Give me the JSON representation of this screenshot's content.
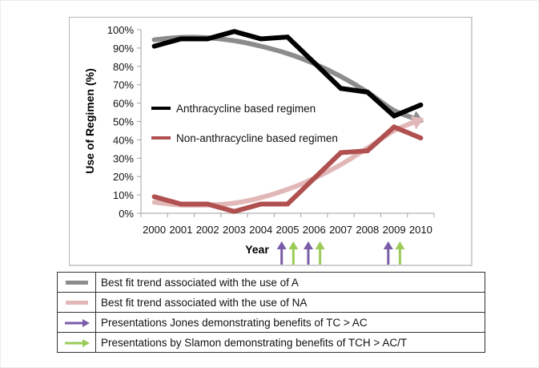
{
  "chart_data": {
    "type": "line",
    "title": "",
    "xlabel": "Year",
    "ylabel": "Use of Regimen (%)",
    "ylim": [
      0,
      100
    ],
    "y_ticks": [
      "0%",
      "10%",
      "20%",
      "30%",
      "40%",
      "50%",
      "60%",
      "70%",
      "80%",
      "90%",
      "100%"
    ],
    "categories": [
      "2000",
      "2001",
      "2002",
      "2003",
      "2004",
      "2005",
      "2006",
      "2007",
      "2008",
      "2009",
      "2010"
    ],
    "series": [
      {
        "name": "Anthracycline based regimen",
        "color": "#000000",
        "values": [
          91,
          95,
          95,
          99,
          95,
          96,
          82,
          68,
          66,
          53,
          59
        ]
      },
      {
        "name": "Non-anthracycline based regimen",
        "color": "#b05050",
        "values": [
          9,
          5,
          5,
          1,
          5,
          5,
          19,
          33,
          34,
          47,
          41
        ]
      }
    ],
    "trend_arrows": [
      {
        "name": "Best fit trend associated with the use of A",
        "color": "#8c8c8c",
        "values": [
          94.5,
          95.8,
          95.6,
          94,
          91,
          87,
          81.5,
          74.5,
          66,
          56,
          50.5
        ]
      },
      {
        "name": "Best fit trend associated with the use of NA",
        "color": "#e2b7b7",
        "values": [
          6,
          4.5,
          4.5,
          5.5,
          8.5,
          13,
          19,
          26.5,
          35.5,
          45,
          51
        ]
      }
    ],
    "presentation_markers": [
      {
        "group": "Jones",
        "color": "#7a5ca8",
        "positions": [
          2005,
          2006,
          2009
        ],
        "offset": -0.22
      },
      {
        "group": "Slamon",
        "color": "#9acb58",
        "positions": [
          2005,
          2006,
          2009
        ],
        "offset": 0.22
      }
    ],
    "grid": false,
    "legend": {
      "placement": "inside-left",
      "entries": [
        "Anthracycline based regimen",
        "Non-anthracycline based regimen"
      ]
    }
  },
  "legend_table": {
    "rows": [
      {
        "symbol": "gray-bar",
        "color": "#8c8c8c",
        "label": "Best fit trend associated with the use of A"
      },
      {
        "symbol": "pink-bar",
        "color": "#e2b7b7",
        "label": "Best fit trend associated with the use of NA"
      },
      {
        "symbol": "purple-arrow",
        "color": "#7a5ca8",
        "label": "Presentations Jones demonstrating benefits of TC > AC"
      },
      {
        "symbol": "green-arrow",
        "color": "#9acb58",
        "label": "Presentations by Slamon demonstrating benefits of TCH > AC/T"
      }
    ]
  }
}
